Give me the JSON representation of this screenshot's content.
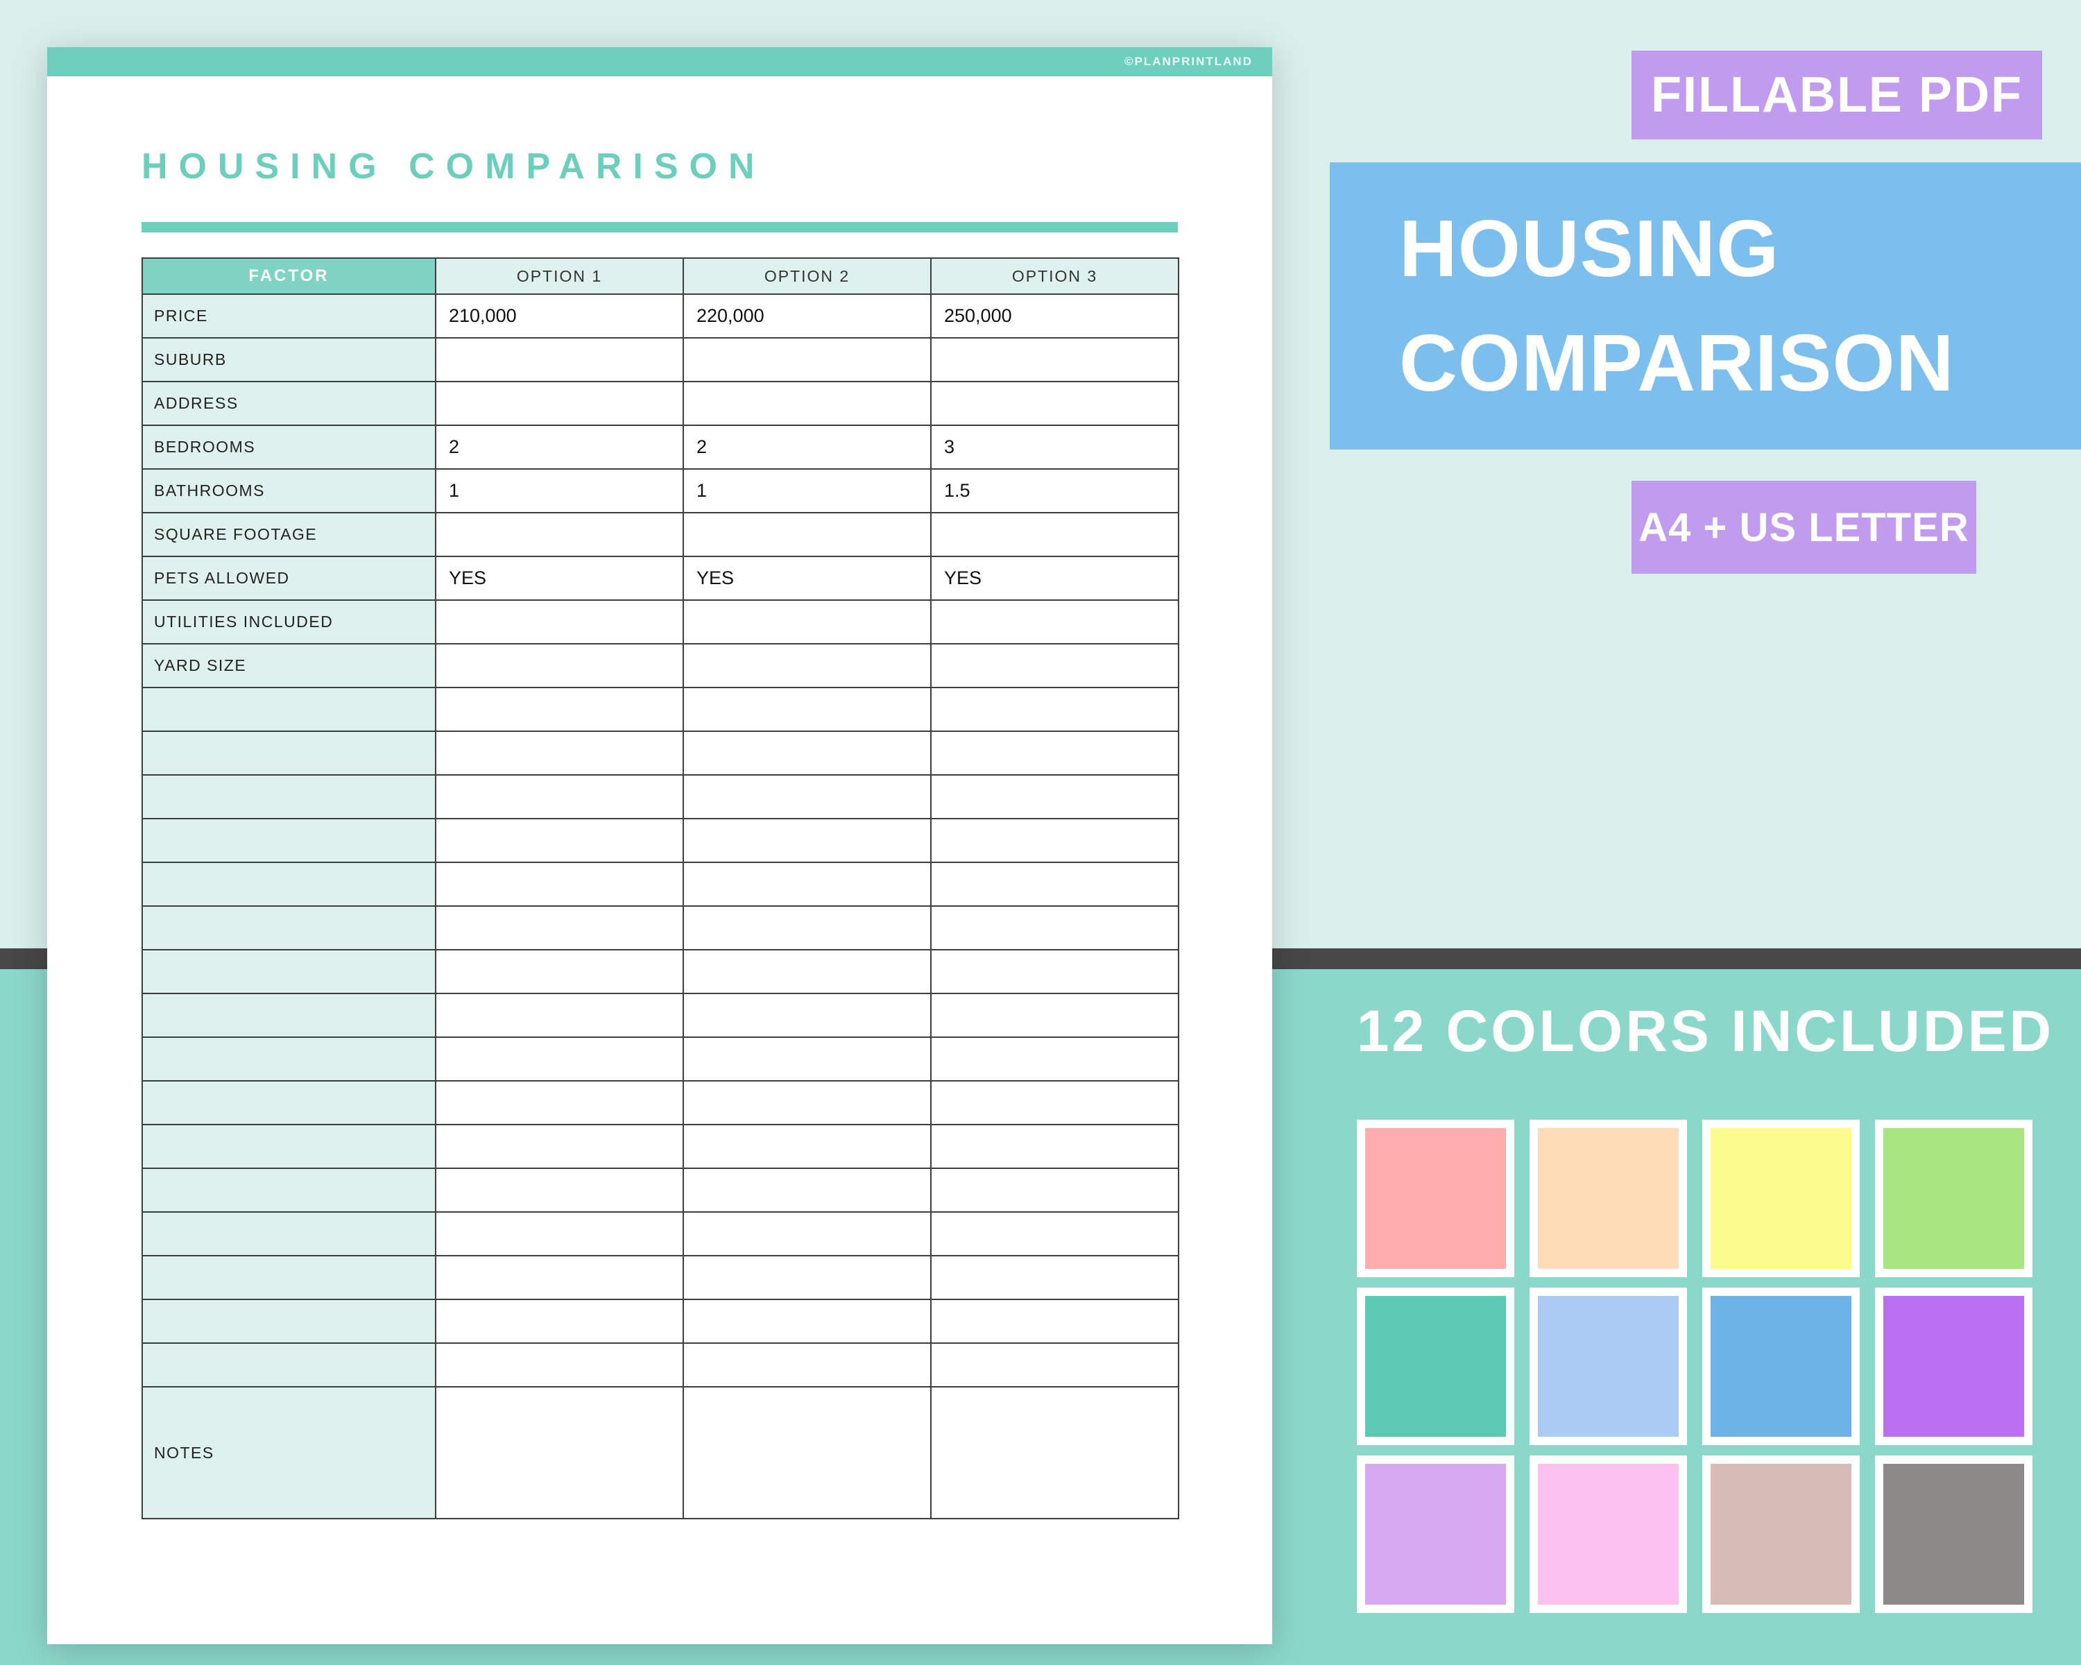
{
  "page": {
    "watermark": "©PLANPRINTLAND",
    "title": "HOUSING COMPARISON",
    "table": {
      "headers": [
        "FACTOR",
        "OPTION 1",
        "OPTION 2",
        "OPTION 3"
      ],
      "rows": [
        {
          "factor": "PRICE",
          "values": [
            "210,000",
            "220,000",
            "250,000"
          ]
        },
        {
          "factor": "SUBURB",
          "values": [
            "",
            "",
            ""
          ]
        },
        {
          "factor": "ADDRESS",
          "values": [
            "",
            "",
            ""
          ]
        },
        {
          "factor": "BEDROOMS",
          "values": [
            "2",
            "2",
            "3"
          ]
        },
        {
          "factor": "BATHROOMS",
          "values": [
            "1",
            "1",
            "1.5"
          ]
        },
        {
          "factor": "SQUARE FOOTAGE",
          "values": [
            "",
            "",
            ""
          ]
        },
        {
          "factor": "PETS ALLOWED",
          "values": [
            "YES",
            "YES",
            "YES"
          ]
        },
        {
          "factor": "UTILITIES INCLUDED",
          "values": [
            "",
            "",
            ""
          ]
        },
        {
          "factor": "YARD SIZE",
          "values": [
            "",
            "",
            ""
          ]
        }
      ],
      "empty_row_count": 16,
      "notes_label": "NOTES"
    }
  },
  "promo": {
    "badge_top": "FILLABLE PDF",
    "main_title_line1": "HOUSING",
    "main_title_line2": "COMPARISON",
    "badge_bottom": "A4 + US LETTER",
    "colors_heading": "12 COLORS INCLUDED",
    "swatches": [
      "#ffaeae",
      "#ffdcb8",
      "#fcfc8c",
      "#a9e581",
      "#5ec9b2",
      "#aaccf4",
      "#6db3e7",
      "#ba70f0",
      "#d7a9f3",
      "#fac1f1",
      "#d5bdb5",
      "#8d8989"
    ]
  },
  "theme": {
    "accent_teal": "#6fcfbf",
    "table_header_teal": "#7ed3c3",
    "table_cell_mint": "#def1ec",
    "title_teal": "#6dcebc",
    "bg_top": "#d9efec",
    "bg_bottom": "#8bd7ca",
    "badge_purple": "#c19cee",
    "banner_blue": "#7dbfec",
    "divider_gray": "#474747",
    "table_border": "#3e3e3e"
  }
}
